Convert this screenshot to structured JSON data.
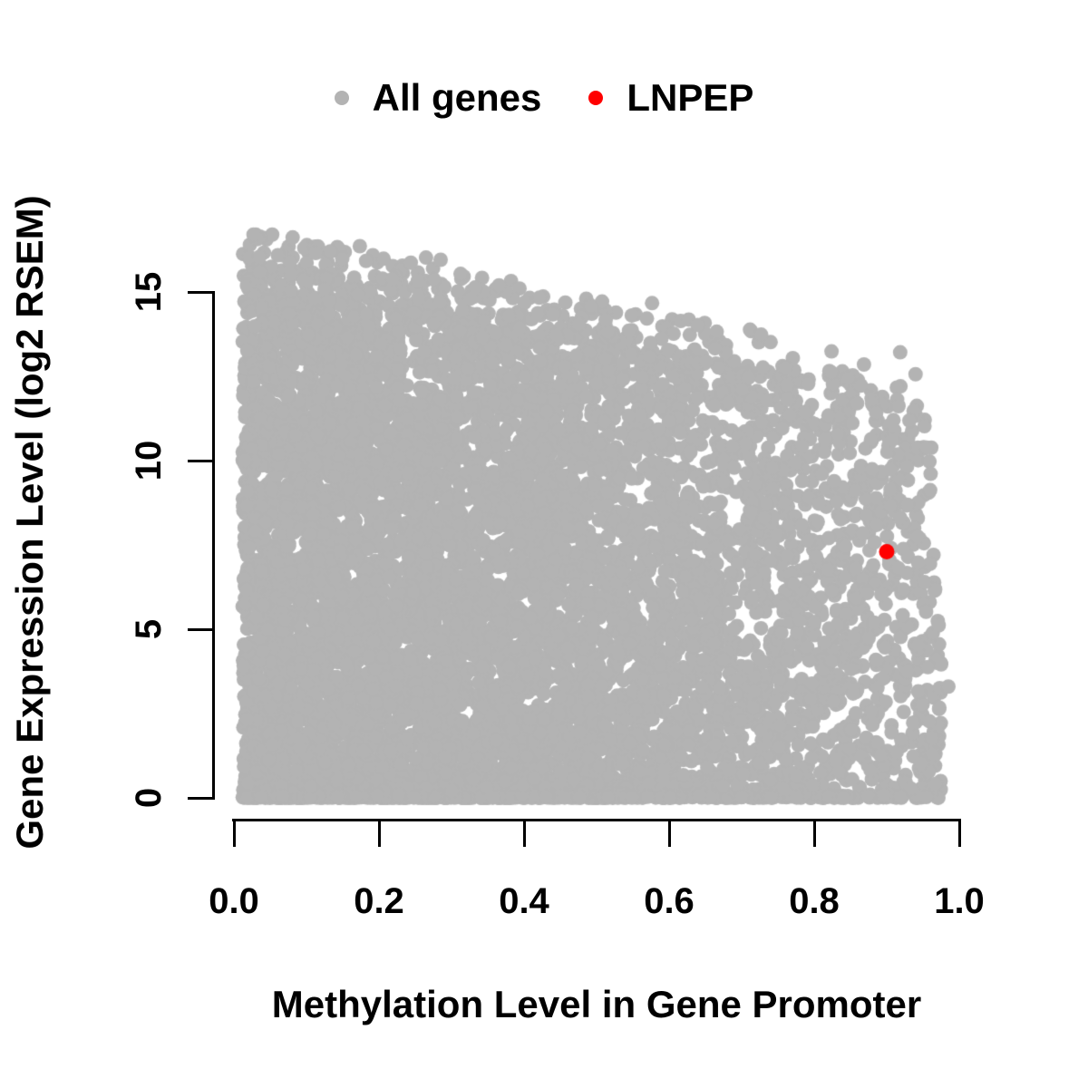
{
  "chart_data": {
    "type": "scatter",
    "title": "",
    "xlabel": "Methylation Level in Gene Promoter",
    "ylabel": "Gene Expression Level (log2 RSEM)",
    "xlim": [
      0,
      1
    ],
    "ylim": [
      0,
      16.8
    ],
    "grid": false,
    "xticks": [
      "0.0",
      "0.2",
      "0.4",
      "0.6",
      "0.8",
      "1.0"
    ],
    "xtick_values": [
      0,
      0.2,
      0.4,
      0.6,
      0.8,
      1.0
    ],
    "yticks": [
      "0",
      "5",
      "10",
      "15"
    ],
    "ytick_values": [
      0,
      5,
      10,
      15
    ],
    "legend": {
      "position": "top-center",
      "items": [
        {
          "label": "All genes",
          "color": "#b3b3b3"
        },
        {
          "label": "LNPEP",
          "color": "#ff0000"
        }
      ]
    },
    "series": [
      {
        "name": "All genes",
        "kind": "dense-cloud",
        "color": "#b3b3b3",
        "marker_radius_px": 8,
        "generator": {
          "seed": 7,
          "n": 8200,
          "x_min": 0.012,
          "x_max": 0.976,
          "x_density_slope": 0.82,
          "envelope_intercept": 15.8,
          "envelope_slope": -4.2,
          "envelope_noise": 0.25,
          "right_taper_start": 0.955,
          "y_exponent": 1.12,
          "zero_band_fraction": 0.07,
          "zero_band_max": 0.12,
          "outlier_fraction": 0.025,
          "outlier_extra_max": 1.3,
          "y_max": 16.7
        },
        "extra_points": [
          [
            0.985,
            3.3
          ]
        ]
      },
      {
        "name": "LNPEP",
        "kind": "points",
        "color": "#ff0000",
        "marker_radius_px": 8.5,
        "points": [
          [
            0.9,
            7.3
          ]
        ]
      }
    ],
    "axis_color": "#000000"
  }
}
